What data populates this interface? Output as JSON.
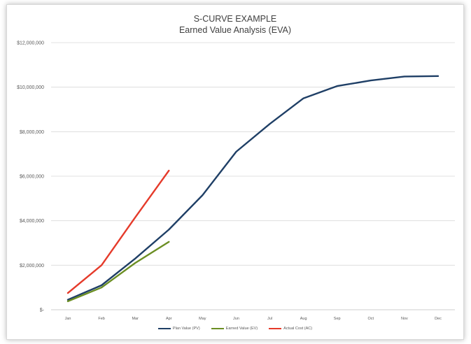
{
  "chart_data": {
    "type": "line",
    "title": "S-CURVE EXAMPLE",
    "subtitle": "Earned Value Analysis (EVA)",
    "xlabel": "",
    "ylabel": "",
    "categories": [
      "Jan",
      "Feb",
      "Mar",
      "Apr",
      "May",
      "Jun",
      "Jul",
      "Aug",
      "Sep",
      "Oct",
      "Nov",
      "Dec"
    ],
    "ylim": [
      0,
      12000000
    ],
    "yticks": [
      {
        "value": 0,
        "label": "$-"
      },
      {
        "value": 2000000,
        "label": "$2,000,000"
      },
      {
        "value": 4000000,
        "label": "$4,000,000"
      },
      {
        "value": 6000000,
        "label": "$6,000,000"
      },
      {
        "value": 8000000,
        "label": "$8,000,000"
      },
      {
        "value": 10000000,
        "label": "$10,000,000"
      },
      {
        "value": 12000000,
        "label": "$12,000,000"
      }
    ],
    "grid": true,
    "legend_position": "bottom",
    "series": [
      {
        "name": "Plan Value (PV)",
        "color": "#1f3f66",
        "values": [
          450000,
          1100000,
          2300000,
          3600000,
          5150000,
          7100000,
          8350000,
          9500000,
          10050000,
          10300000,
          10480000,
          10500000
        ]
      },
      {
        "name": "Earned Value (EV)",
        "color": "#6b8e23",
        "values": [
          380000,
          1000000,
          2100000,
          3050000,
          null,
          null,
          null,
          null,
          null,
          null,
          null,
          null
        ]
      },
      {
        "name": "Actual Cost (AC)",
        "color": "#e53a2a",
        "values": [
          750000,
          2000000,
          4150000,
          6250000,
          null,
          null,
          null,
          null,
          null,
          null,
          null,
          null
        ]
      }
    ]
  }
}
